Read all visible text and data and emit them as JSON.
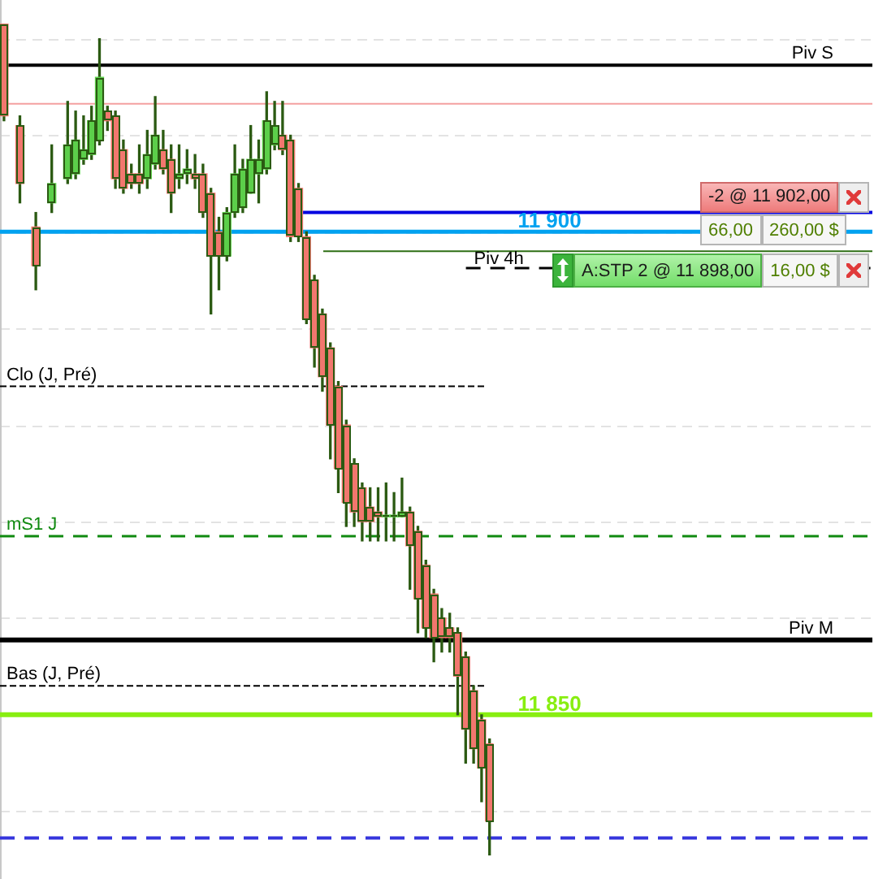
{
  "chart_data": {
    "type": "candlestick",
    "categories": [
      null,
      null,
      null,
      null,
      null,
      null,
      null,
      null,
      null,
      null,
      null,
      null,
      null,
      null,
      null,
      null,
      null,
      null,
      null,
      null,
      null,
      null,
      null,
      null,
      null,
      null,
      null,
      null,
      null,
      null,
      null,
      null,
      null,
      null,
      null,
      null,
      null,
      null,
      null,
      null,
      null,
      null,
      null,
      null,
      null,
      null,
      null,
      null,
      null,
      null,
      null,
      null,
      null,
      null,
      null,
      null,
      null,
      null,
      null,
      null,
      null,
      null
    ],
    "ohlc": [
      [
        11921.5,
        11921.5,
        11911.5,
        11912
      ],
      null,
      [
        11911,
        11912,
        11903,
        11905
      ],
      null,
      [
        11900.5,
        11902,
        11894,
        11896.5
      ],
      null,
      [
        11903,
        11909,
        11902,
        11905
      ],
      null,
      [
        11905.5,
        11913.5,
        11905,
        11909
      ],
      [
        11906,
        11912.5,
        11905.5,
        11909.5
      ],
      [
        11907.5,
        11912,
        11907,
        11908.5
      ],
      [
        11908,
        11913,
        11907.5,
        11911.5
      ],
      [
        11909.5,
        11920,
        11909,
        11916
      ],
      [
        11912.5,
        11913,
        11910.5,
        11911.5
      ],
      [
        11912,
        11912.5,
        11904.5,
        11905.5
      ],
      [
        11908.5,
        11909.5,
        11904,
        11904.5
      ],
      [
        11906,
        11907,
        11904.5,
        11905
      ],
      [
        11906,
        11909,
        11904,
        11905
      ],
      [
        11905.5,
        11910.5,
        11904.5,
        11908
      ],
      [
        11907,
        11914,
        11906.5,
        11910
      ],
      [
        11908.5,
        11910.5,
        11906,
        11906.5
      ],
      [
        11907.5,
        11909,
        11902,
        11904
      ],
      [
        11905.5,
        11909,
        11904.5,
        11906
      ],
      [
        11906,
        11908.5,
        11905,
        11906.5
      ],
      [
        11906,
        11908,
        11904.5,
        11905.5
      ],
      [
        11906,
        11907,
        11901.5,
        11902
      ],
      [
        11904,
        11904.5,
        11891.5,
        11897.5
      ],
      [
        11900,
        11901.5,
        11894,
        11897.5
      ],
      [
        11897.5,
        11902.5,
        11897,
        11902
      ],
      [
        11902,
        11909,
        11901.5,
        11906
      ],
      [
        11902.5,
        11907.5,
        11902,
        11906.5
      ],
      [
        11904,
        11911,
        11904,
        11907.5
      ],
      [
        11906,
        11909.5,
        11903,
        11907.5
      ],
      [
        11906.5,
        11914.5,
        11906,
        11911.5
      ],
      [
        11909,
        11913.5,
        11908.5,
        11911
      ],
      [
        11910,
        11913.5,
        11908,
        11908.5
      ],
      [
        11909.5,
        11910,
        11899,
        11899.5
      ],
      [
        11904.5,
        11905,
        11899,
        11899.5
      ],
      [
        11899.5,
        11900,
        11890.5,
        11891
      ],
      [
        11895,
        11895.5,
        11886,
        11888
      ],
      [
        11891.5,
        11892,
        11883.5,
        11885
      ],
      [
        11888,
        11888.5,
        11876.5,
        11880
      ],
      [
        11884,
        11884.5,
        11873,
        11875.5
      ],
      [
        11880,
        11880.5,
        11869.5,
        11872
      ],
      [
        11876,
        11876.5,
        11869.5,
        11871
      ],
      [
        11873.5,
        11874,
        11868,
        11870
      ],
      [
        11871.5,
        11873.5,
        11868,
        11870
      ],
      [
        11871,
        11873.5,
        11868,
        11870.5
      ],
      [
        11870.5,
        11874,
        11868,
        11870.5
      ],
      [
        11870.5,
        11873,
        11868,
        11870.5
      ],
      [
        11870.5,
        11874.5,
        11870.5,
        11871
      ],
      [
        11871,
        11871.5,
        11863,
        11867.5
      ],
      [
        11869,
        11869.5,
        11858.5,
        11862
      ],
      [
        11865.5,
        11866,
        11858,
        11859
      ],
      [
        11862.5,
        11863,
        11855.5,
        11858
      ],
      [
        11860,
        11861,
        11856.5,
        11858
      ],
      [
        11859,
        11860.5,
        11856.5,
        11858
      ],
      [
        11858.5,
        11859,
        11850,
        11854
      ],
      [
        11856,
        11856.5,
        11845,
        11848.5
      ],
      [
        11852.5,
        11853,
        11845,
        11846.5
      ],
      [
        11849.5,
        11850,
        11841,
        11844.5
      ],
      [
        11847,
        11847.5,
        11835.5,
        11839
      ]
    ],
    "colors": [
      "#f2776e",
      null,
      "#f2776e",
      null,
      "#f2776e",
      null,
      "#5ccf4a",
      null,
      "#5ccf4a",
      "#5ccf4a",
      "#5ccf4a",
      "#5ccf4a",
      "#5ccf4a",
      "#f2776e",
      "#f2776e",
      "#f2776e",
      "#f2776e",
      "#f2776e",
      "#5ccf4a",
      "#5ccf4a",
      "#f2776e",
      "#f2776e",
      "#5ccf4a",
      "#5ccf4a",
      "#f2776e",
      "#f2776e",
      "#f2776e",
      "#f2776e",
      "#5ccf4a",
      "#5ccf4a",
      "#5ccf4a",
      "#5ccf4a",
      "#5ccf4a",
      "#5ccf4a",
      "#5ccf4a",
      "#f2776e",
      "#f2776e",
      "#f2776e",
      "#f2776e",
      "#f2776e",
      "#f2776e",
      "#f2776e",
      "#f2776e",
      "#f2776e",
      "#f2776e",
      "#f2776e",
      "#f2776e",
      "#f2776e",
      "#5ccf4a",
      "#5ccf4a",
      "#5ccf4a",
      "#f2776e",
      "#f2776e",
      "#f2776e",
      "#f2776e",
      "#f2776e",
      "#f2776e",
      "#f2776e",
      "#f2776e",
      "#f2776e",
      "#f2776e",
      "#f2776e"
    ],
    "ylim": [
      11833,
      11924
    ],
    "yticks": [
      {
        "value": 11840,
        "label": null
      },
      {
        "value": 11850,
        "label": null
      },
      {
        "value": 11860,
        "label": null
      },
      {
        "value": 11870,
        "label": null
      },
      {
        "value": 11880,
        "label": null
      },
      {
        "value": 11890,
        "label": null
      },
      {
        "value": 11900,
        "label": null
      },
      {
        "value": 11910,
        "label": null
      },
      {
        "value": 11920,
        "label": null
      }
    ],
    "grid": "y",
    "ref_lines": [
      {
        "axis": "y",
        "value": 11917.25,
        "label": "Piv S",
        "color": "#000000",
        "line_style": "solid"
      },
      {
        "axis": "y",
        "value": 11913.25,
        "color": "#f4a0a0",
        "line_style": "solid"
      },
      {
        "axis": "y",
        "value": 11902,
        "label": "-2 @ 11 902,00",
        "color": "#0000e0",
        "line_style": "solid"
      },
      {
        "axis": "y",
        "value": 11900,
        "label": "11 900",
        "color": "#00a2f0",
        "line_style": "solid"
      },
      {
        "axis": "y",
        "value": 11898,
        "label": "A:STP 2 @ 11 898,00",
        "color": "#2e6e14",
        "line_style": "solid"
      },
      {
        "axis": "y",
        "value": 11896.25,
        "label": "Piv 4h",
        "color": "#000000",
        "line_style": "dashed"
      },
      {
        "axis": "y",
        "value": 11884,
        "label": "Clo (J, Pré)",
        "color": "#000000",
        "line_style": "dotted"
      },
      {
        "axis": "y",
        "value": 11868.5,
        "label": "mS1 J",
        "color": "#108a10",
        "line_style": "dashed"
      },
      {
        "axis": "y",
        "value": 11857.75,
        "label": "Piv M",
        "color": "#000000",
        "line_style": "solid"
      },
      {
        "axis": "y",
        "value": 11853,
        "label": "Bas (J, Pré)",
        "color": "#000000",
        "line_style": "dotted"
      },
      {
        "axis": "y",
        "value": 11850,
        "label": "11 850",
        "color": "#88ee11",
        "line_style": "solid"
      },
      {
        "axis": "y",
        "value": 11837.25,
        "color": "#3535dd",
        "line_style": "dashed"
      }
    ],
    "annotations": [
      "66,00",
      "260,00 $",
      "16,00 $"
    ]
  }
}
